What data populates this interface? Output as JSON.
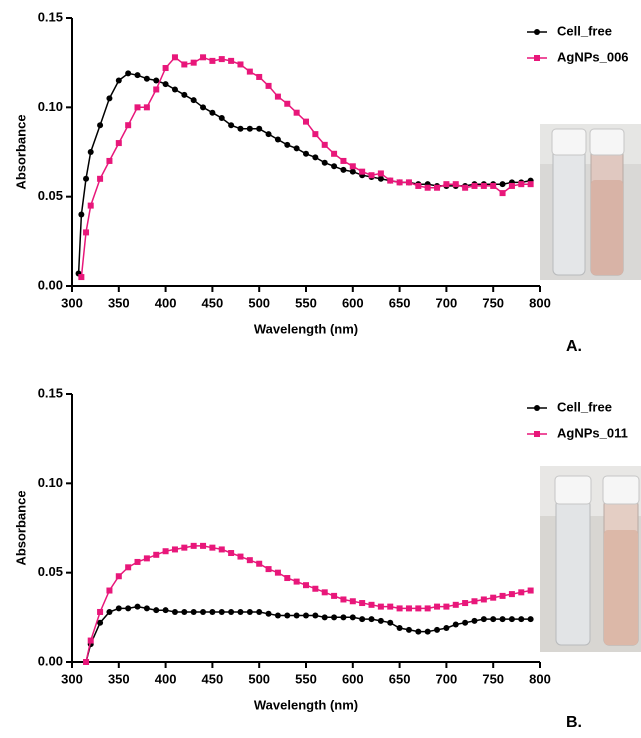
{
  "chart_data": [
    {
      "type": "line",
      "x_label": "Wavelength (nm)",
      "y_label": "Absorbance",
      "panel_label": "A.",
      "x": [
        307,
        310,
        315,
        320,
        330,
        340,
        350,
        360,
        370,
        380,
        390,
        400,
        410,
        420,
        430,
        440,
        450,
        460,
        470,
        480,
        490,
        500,
        510,
        520,
        530,
        540,
        550,
        560,
        570,
        580,
        590,
        600,
        610,
        620,
        630,
        640,
        650,
        660,
        670,
        680,
        690,
        700,
        710,
        720,
        730,
        740,
        750,
        760,
        770,
        780,
        790
      ],
      "series": [
        {
          "name": "Cell_free",
          "color": "#000000",
          "marker": "circle",
          "values": [
            0.007,
            0.04,
            0.06,
            0.075,
            0.09,
            0.105,
            0.115,
            0.119,
            0.118,
            0.116,
            0.115,
            0.113,
            0.11,
            0.107,
            0.104,
            0.1,
            0.097,
            0.094,
            0.09,
            0.088,
            0.088,
            0.088,
            0.085,
            0.082,
            0.079,
            0.077,
            0.074,
            0.072,
            0.069,
            0.067,
            0.065,
            0.064,
            0.062,
            0.061,
            0.06,
            0.059,
            0.058,
            0.058,
            0.057,
            0.057,
            0.056,
            0.056,
            0.056,
            0.056,
            0.057,
            0.057,
            0.057,
            0.057,
            0.058,
            0.058,
            0.059
          ]
        },
        {
          "name": "AgNPs_006",
          "color": "#e8177a",
          "marker": "square",
          "values": [
            null,
            0.005,
            0.03,
            0.045,
            0.06,
            0.07,
            0.08,
            0.09,
            0.1,
            0.1,
            0.11,
            0.122,
            0.128,
            0.124,
            0.125,
            0.128,
            0.126,
            0.127,
            0.126,
            0.124,
            0.12,
            0.117,
            0.112,
            0.106,
            0.102,
            0.097,
            0.092,
            0.085,
            0.079,
            0.074,
            0.07,
            0.067,
            0.064,
            0.062,
            0.063,
            0.059,
            0.058,
            0.058,
            0.056,
            0.055,
            0.055,
            0.057,
            0.057,
            0.055,
            0.056,
            0.056,
            0.056,
            0.052,
            0.056,
            0.057,
            0.057
          ]
        }
      ],
      "xlim": [
        300,
        800
      ],
      "xticks": [
        300,
        350,
        400,
        450,
        500,
        550,
        600,
        650,
        700,
        750,
        800
      ],
      "ylim": [
        0,
        0.15
      ],
      "yticks": [
        {
          "value": 0,
          "label": "0.00"
        },
        {
          "value": 0.05,
          "label": "0.05"
        },
        {
          "value": 0.1,
          "label": "0.10"
        },
        {
          "value": 0.15,
          "label": "0.15"
        }
      ],
      "legend": "top-right",
      "grid": false
    },
    {
      "type": "line",
      "x_label": "Wavelength (nm)",
      "y_label": "Absorbance",
      "panel_label": "B.",
      "x": [
        315,
        320,
        330,
        340,
        350,
        360,
        370,
        380,
        390,
        400,
        410,
        420,
        430,
        440,
        450,
        460,
        470,
        480,
        490,
        500,
        510,
        520,
        530,
        540,
        550,
        560,
        570,
        580,
        590,
        600,
        610,
        620,
        630,
        640,
        650,
        660,
        670,
        680,
        690,
        700,
        710,
        720,
        730,
        740,
        750,
        760,
        770,
        780,
        790
      ],
      "series": [
        {
          "name": "Cell_free",
          "color": "#000000",
          "marker": "circle",
          "values": [
            0.0,
            0.01,
            0.022,
            0.028,
            0.03,
            0.03,
            0.031,
            0.03,
            0.029,
            0.029,
            0.028,
            0.028,
            0.028,
            0.028,
            0.028,
            0.028,
            0.028,
            0.028,
            0.028,
            0.028,
            0.027,
            0.026,
            0.026,
            0.026,
            0.026,
            0.026,
            0.025,
            0.025,
            0.025,
            0.025,
            0.024,
            0.024,
            0.023,
            0.022,
            0.019,
            0.018,
            0.017,
            0.017,
            0.018,
            0.019,
            0.021,
            0.022,
            0.023,
            0.024,
            0.024,
            0.024,
            0.024,
            0.024,
            0.024
          ]
        },
        {
          "name": "AgNPs_011",
          "color": "#e8177a",
          "marker": "square",
          "values": [
            0.0,
            0.012,
            0.028,
            0.04,
            0.048,
            0.053,
            0.056,
            0.058,
            0.06,
            0.062,
            0.063,
            0.064,
            0.065,
            0.065,
            0.064,
            0.063,
            0.061,
            0.059,
            0.057,
            0.055,
            0.052,
            0.05,
            0.047,
            0.045,
            0.043,
            0.041,
            0.039,
            0.037,
            0.035,
            0.034,
            0.033,
            0.032,
            0.031,
            0.031,
            0.03,
            0.03,
            0.03,
            0.03,
            0.031,
            0.031,
            0.032,
            0.033,
            0.034,
            0.035,
            0.036,
            0.037,
            0.038,
            0.039,
            0.04
          ]
        }
      ],
      "xlim": [
        300,
        800
      ],
      "xticks": [
        300,
        350,
        400,
        450,
        500,
        550,
        600,
        650,
        700,
        750,
        800
      ],
      "ylim": [
        0,
        0.15
      ],
      "yticks": [
        {
          "value": 0,
          "label": "0.00"
        },
        {
          "value": 0.05,
          "label": "0.05"
        },
        {
          "value": 0.1,
          "label": "0.10"
        },
        {
          "value": 0.15,
          "label": "0.15"
        }
      ],
      "legend": "top-right",
      "grid": false
    }
  ]
}
